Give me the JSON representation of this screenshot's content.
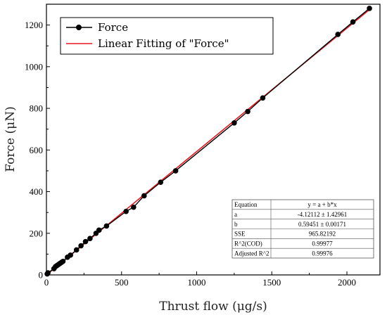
{
  "chart_data": {
    "type": "scatter",
    "xlabel": "Thrust flow (μg/s)",
    "ylabel": "Force (μN)",
    "xlim": [
      0,
      2220
    ],
    "ylim": [
      0,
      1300
    ],
    "xticks": [
      0,
      500,
      1000,
      1500,
      2000
    ],
    "yticks": [
      0,
      200,
      400,
      600,
      800,
      1000,
      1200
    ],
    "xtick_labels": [
      "0",
      "500",
      "1000",
      "1500",
      "2000"
    ],
    "ytick_labels": [
      "0",
      "200",
      "400",
      "600",
      "800",
      "1000",
      "1200"
    ],
    "grid": false,
    "legend_position": "top-left",
    "series": [
      {
        "name": "Force",
        "style": "line-with-markers",
        "color": "#000000",
        "x": [
          5,
          10,
          50,
          60,
          70,
          80,
          90,
          100,
          110,
          140,
          160,
          200,
          230,
          260,
          290,
          330,
          350,
          400,
          530,
          580,
          650,
          760,
          860,
          1250,
          1340,
          1440,
          1940,
          2040,
          2150
        ],
        "y": [
          5,
          10,
          30,
          40,
          45,
          50,
          55,
          60,
          65,
          85,
          95,
          120,
          140,
          160,
          175,
          200,
          215,
          235,
          305,
          325,
          380,
          445,
          500,
          730,
          785,
          850,
          1155,
          1215,
          1280
        ]
      },
      {
        "name": "Linear Fitting of \"Force\"",
        "style": "line",
        "color": "#e8171f",
        "x": [
          0,
          2150
        ],
        "y": [
          -4.12112,
          1274.07
        ]
      }
    ],
    "fit_table": {
      "rows": [
        [
          "Equation",
          "y = a + b*x"
        ],
        [
          "a",
          "-4.12112 ± 1.42961"
        ],
        [
          "b",
          "0.59451 ± 0.00171"
        ],
        [
          "SSE",
          "965.82192"
        ],
        [
          "R^2(COD)",
          "0.99977"
        ],
        [
          "Adjusted R^2",
          "0.99976"
        ]
      ]
    }
  }
}
